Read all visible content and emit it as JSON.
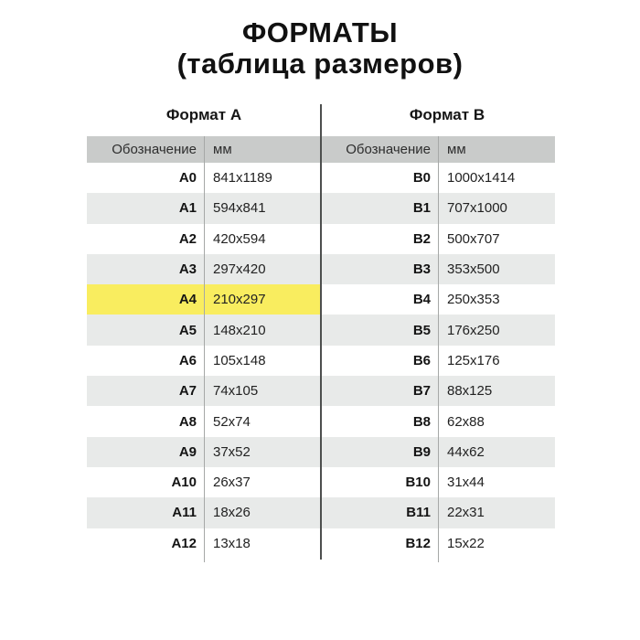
{
  "title": "ФОРМАТЫ",
  "subtitle": "(таблица размеров)",
  "sections": {
    "a_label": "Формат А",
    "b_label": "Формат В"
  },
  "table": {
    "col_designation": "Обозначение",
    "col_mm": "мм",
    "rows": [
      {
        "a": "A0",
        "a_mm": "841x1189",
        "b": "B0",
        "b_mm": "1000x1414",
        "highlight": false
      },
      {
        "a": "A1",
        "a_mm": "594x841",
        "b": "B1",
        "b_mm": "707x1000",
        "highlight": false
      },
      {
        "a": "A2",
        "a_mm": "420x594",
        "b": "B2",
        "b_mm": "500x707",
        "highlight": false
      },
      {
        "a": "A3",
        "a_mm": "297x420",
        "b": "B3",
        "b_mm": "353x500",
        "highlight": false
      },
      {
        "a": "A4",
        "a_mm": "210x297",
        "b": "B4",
        "b_mm": "250x353",
        "highlight": true
      },
      {
        "a": "A5",
        "a_mm": "148x210",
        "b": "B5",
        "b_mm": "176x250",
        "highlight": false
      },
      {
        "a": "A6",
        "a_mm": "105x148",
        "b": "B6",
        "b_mm": "125x176",
        "highlight": false
      },
      {
        "a": "A7",
        "a_mm": "74x105",
        "b": "B7",
        "b_mm": "88x125",
        "highlight": false
      },
      {
        "a": "A8",
        "a_mm": "52x74",
        "b": "B8",
        "b_mm": "62x88",
        "highlight": false
      },
      {
        "a": "A9",
        "a_mm": "37x52",
        "b": "B9",
        "b_mm": "44x62",
        "highlight": false
      },
      {
        "a": "A10",
        "a_mm": "26x37",
        "b": "B10",
        "b_mm": "31x44",
        "highlight": false
      },
      {
        "a": "A11",
        "a_mm": "18x26",
        "b": "B11",
        "b_mm": "22x31",
        "highlight": false
      },
      {
        "a": "A12",
        "a_mm": "13x18",
        "b": "B12",
        "b_mm": "15x22",
        "highlight": false
      }
    ]
  },
  "colors": {
    "header_bg": "#c9cbca",
    "row_alt_bg": "#e8eae9",
    "highlight_bg": "#f9ed5f",
    "dark_line": "#4d4f4e",
    "light_line": "#a6a8a7"
  },
  "chart_data": {
    "type": "table",
    "title": "ФОРМАТЫ (таблица размеров)",
    "sections": [
      "Формат А",
      "Формат В"
    ],
    "columns": [
      "Обозначение",
      "мм"
    ],
    "format_a": [
      [
        "A0",
        "841x1189"
      ],
      [
        "A1",
        "594x841"
      ],
      [
        "A2",
        "420x594"
      ],
      [
        "A3",
        "297x420"
      ],
      [
        "A4",
        "210x297"
      ],
      [
        "A5",
        "148x210"
      ],
      [
        "A6",
        "105x148"
      ],
      [
        "A7",
        "74x105"
      ],
      [
        "A8",
        "52x74"
      ],
      [
        "A9",
        "37x52"
      ],
      [
        "A10",
        "26x37"
      ],
      [
        "A11",
        "18x26"
      ],
      [
        "A12",
        "13x18"
      ]
    ],
    "format_b": [
      [
        "B0",
        "1000x1414"
      ],
      [
        "B1",
        "707x1000"
      ],
      [
        "B2",
        "500x707"
      ],
      [
        "B3",
        "353x500"
      ],
      [
        "B4",
        "250x353"
      ],
      [
        "B5",
        "176x250"
      ],
      [
        "B6",
        "125x176"
      ],
      [
        "B7",
        "88x125"
      ],
      [
        "B8",
        "62x88"
      ],
      [
        "B9",
        "44x62"
      ],
      [
        "B10",
        "31x44"
      ],
      [
        "B11",
        "22x31"
      ],
      [
        "B12",
        "15x22"
      ]
    ],
    "highlighted_row": "A4",
    "layout": "two table halves separated by vertical rule; alternating row shading; A4 row highlighted yellow"
  }
}
